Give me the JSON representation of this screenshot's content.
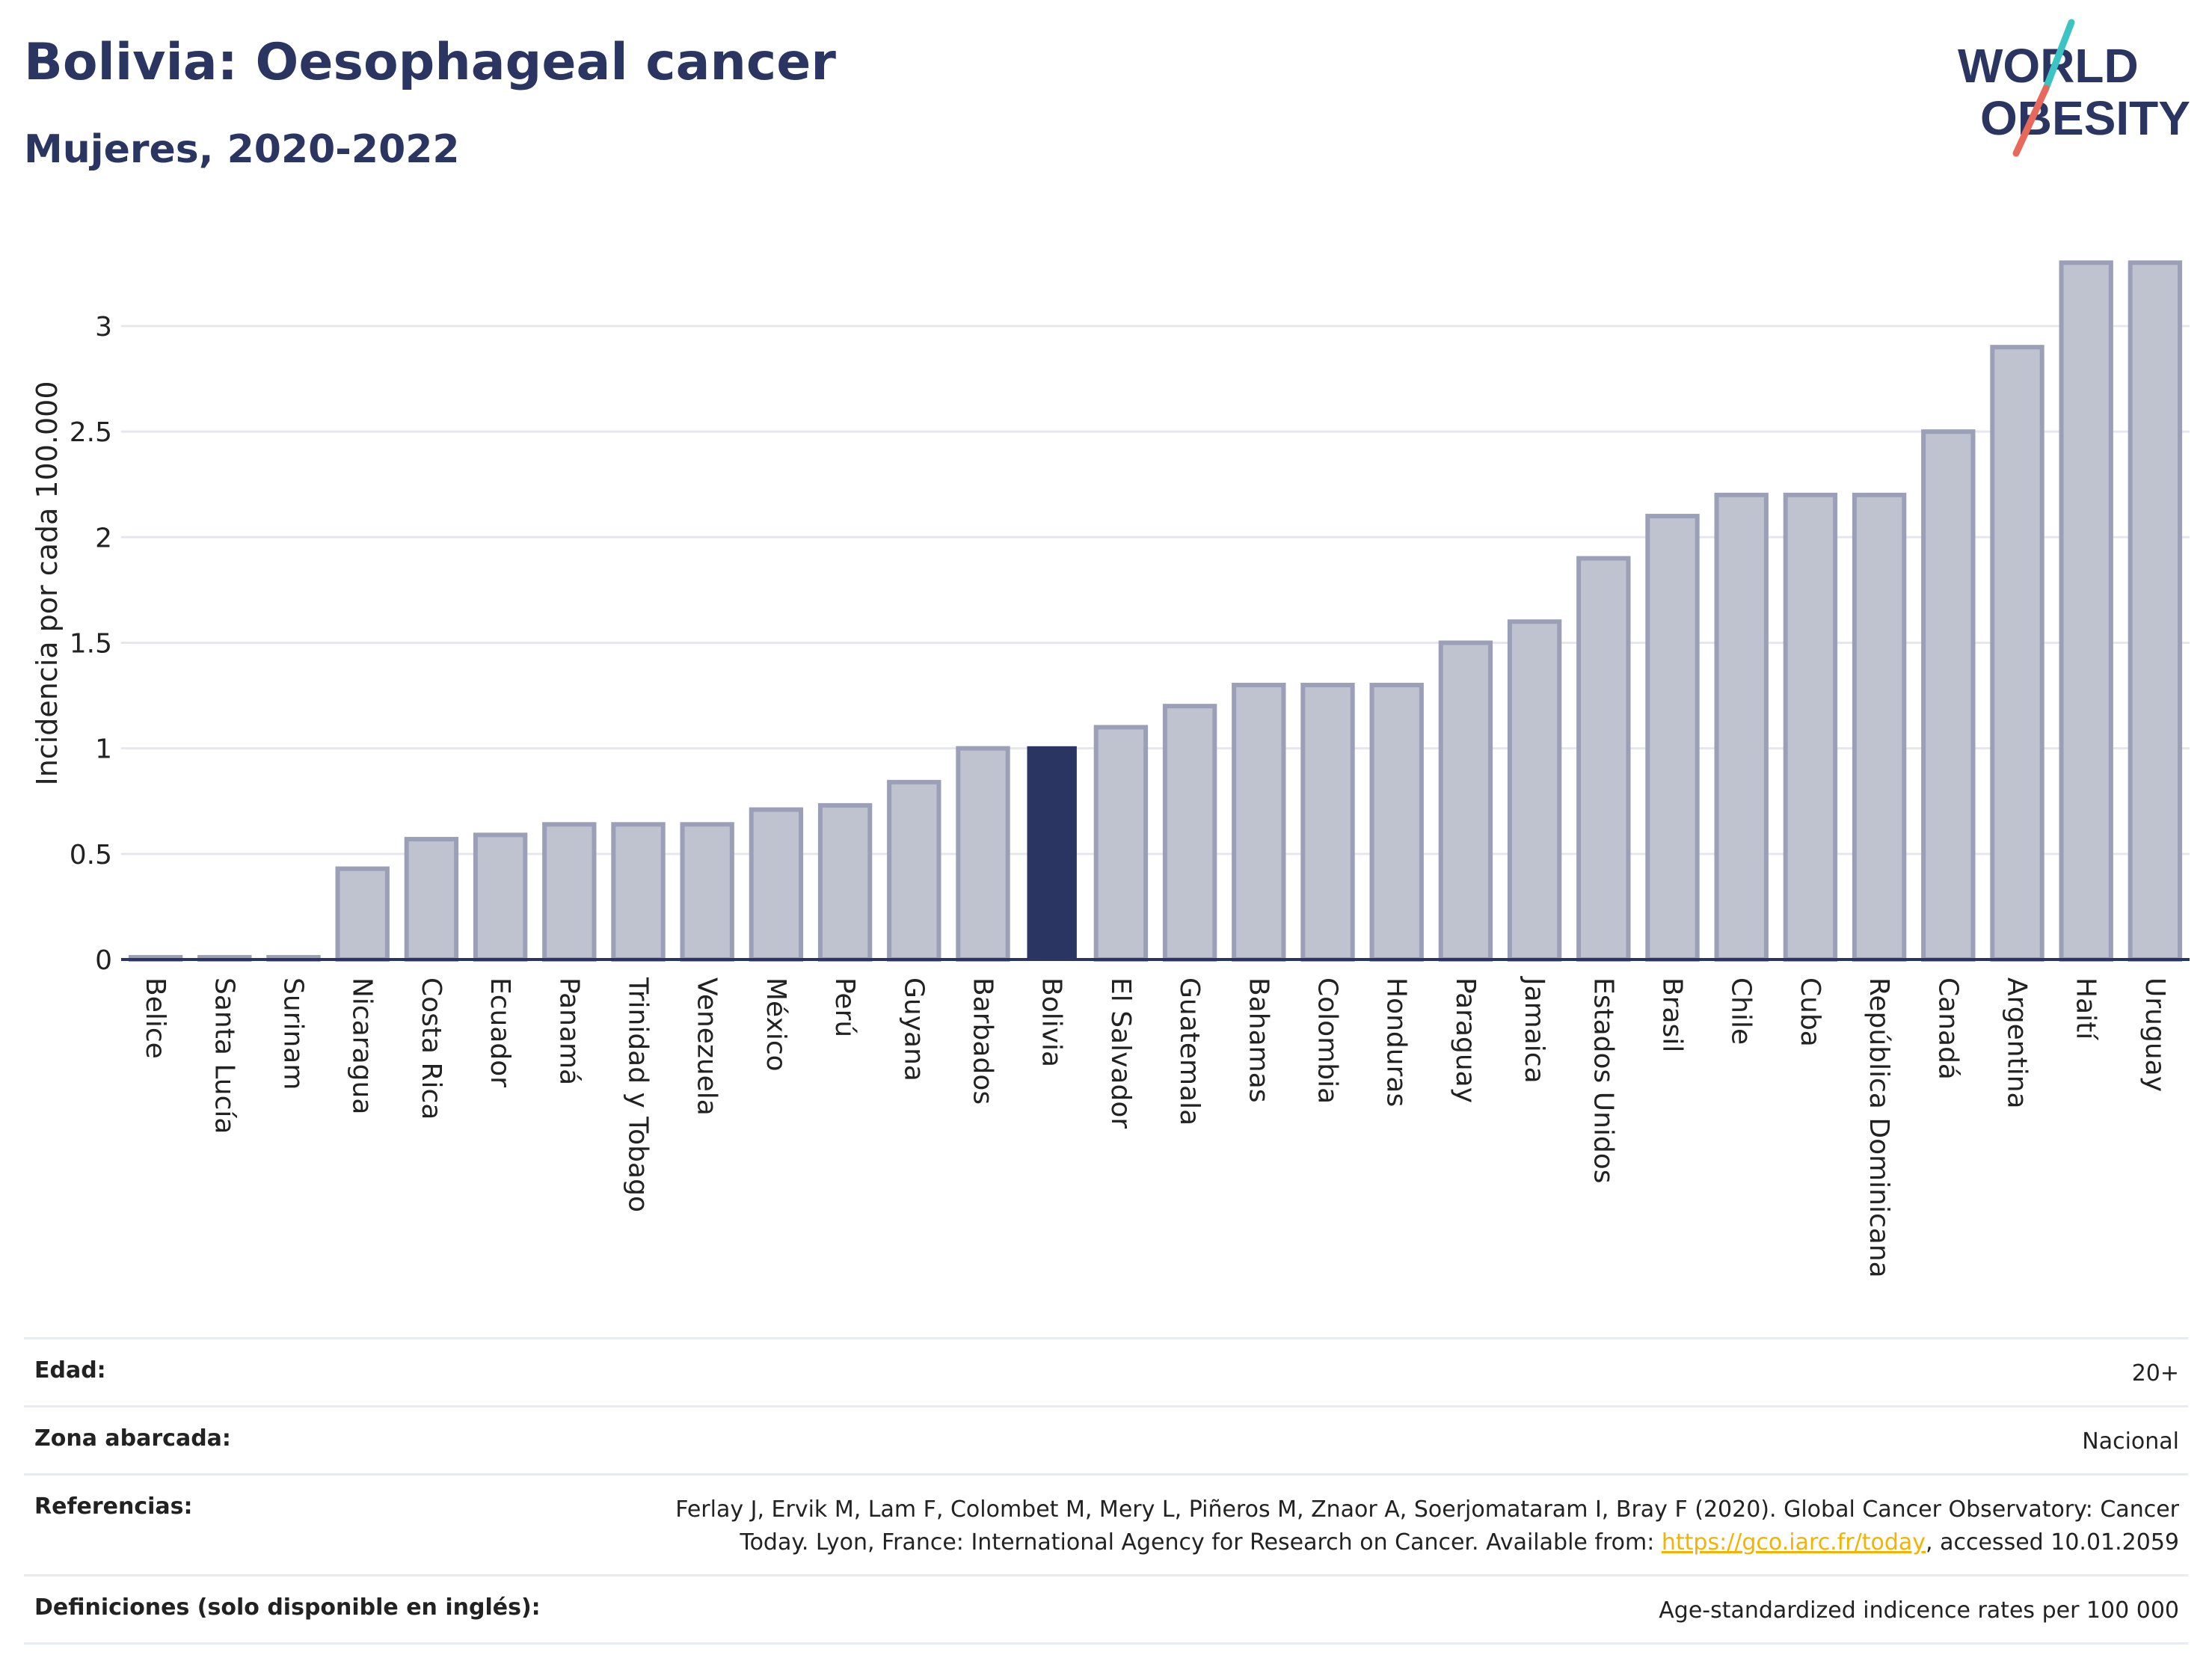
{
  "header": {
    "title": "Bolivia: Oesophageal cancer",
    "subtitle": "Mujeres, 2020-2022"
  },
  "logo": {
    "line1": "WORLD",
    "line2": "OBESITY",
    "accent_colors": [
      "#3cc4c4",
      "#e8695b"
    ]
  },
  "colors": {
    "bar_default": "#bfc2cf",
    "bar_default_stroke": "#9ba0b8",
    "bar_highlight": "#2b3561",
    "axis": "#2b3561",
    "grid": "#e6e7ee"
  },
  "chart_data": {
    "type": "bar",
    "title": "Bolivia: Oesophageal cancer",
    "subtitle": "Mujeres, 2020-2022",
    "ylabel": "Incidencia por cada 100.000",
    "xlabel": "",
    "ylim": [
      0,
      3.4
    ],
    "yticks": [
      0,
      0.5,
      1,
      1.5,
      2,
      2.5,
      3
    ],
    "ytick_labels": [
      "0",
      "0.5",
      "1",
      "1.5",
      "2",
      "2.5",
      "3"
    ],
    "grid": true,
    "highlight": "Bolivia",
    "categories": [
      "Belice",
      "Santa Lucía",
      "Surinam",
      "Nicaragua",
      "Costa Rica",
      "Ecuador",
      "Panamá",
      "Trinidad y Tobago",
      "Venezuela",
      "México",
      "Perú",
      "Guyana",
      "Barbados",
      "Bolivia",
      "El Salvador",
      "Guatemala",
      "Bahamas",
      "Colombia",
      "Honduras",
      "Paraguay",
      "Jamaica",
      "Estados Unidos",
      "Brasil",
      "Chile",
      "Cuba",
      "República Dominicana",
      "Canadá",
      "Argentina",
      "Haití",
      "Uruguay"
    ],
    "values": [
      0.01,
      0.01,
      0.01,
      0.43,
      0.57,
      0.59,
      0.64,
      0.64,
      0.64,
      0.71,
      0.73,
      0.84,
      1.0,
      1.01,
      1.1,
      1.2,
      1.3,
      1.3,
      1.3,
      1.5,
      1.6,
      1.9,
      2.1,
      2.2,
      2.2,
      2.2,
      2.5,
      2.9,
      3.3,
      3.3
    ]
  },
  "meta": {
    "rows": [
      {
        "key": "Edad:",
        "value": "20+"
      },
      {
        "key": "Zona abarcada:",
        "value": "Nacional"
      },
      {
        "key": "Referencias:",
        "value_line1": "Ferlay J, Ervik M, Lam F, Colombet M, Mery L, Piñeros M, Znaor A, Soerjomataram I, Bray F (2020). Global Cancer Observatory: Cancer",
        "value_line2_pre": "Today. Lyon, France: International Agency for Research on Cancer. Available from: ",
        "link": "https://gco.iarc.fr/today",
        "value_line2_post": ", accessed 10.01.2059"
      },
      {
        "key": "Definiciones (solo disponible en inglés):",
        "value": "Age-standardized indicence rates per 100 000"
      }
    ]
  }
}
